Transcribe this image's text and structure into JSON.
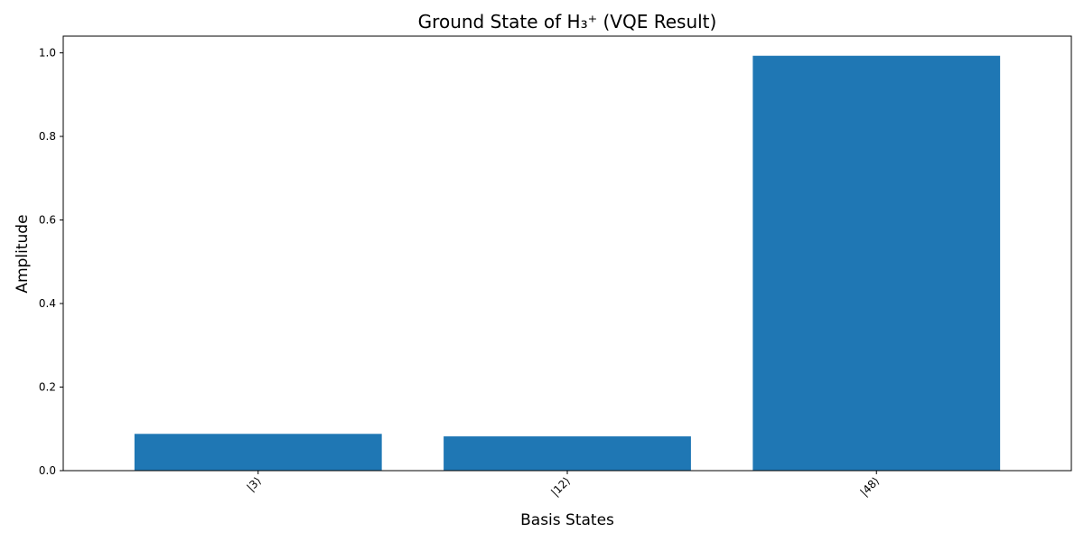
{
  "chart_data": {
    "type": "bar",
    "title": "Ground State of H₃⁺ (VQE Result)",
    "xlabel": "Basis States",
    "ylabel": "Amplitude",
    "categories": [
      "|3⟩",
      "|12⟩",
      "|48⟩"
    ],
    "values": [
      0.088,
      0.082,
      0.993
    ],
    "ylim": [
      0,
      1.04
    ],
    "yticks": [
      0.0,
      0.2,
      0.4,
      0.6,
      0.8,
      1.0
    ],
    "ytick_labels": [
      "0.0",
      "0.2",
      "0.4",
      "0.6",
      "0.8",
      "1.0"
    ],
    "bar_color": "#1f77b4",
    "grid": false,
    "xtick_rotation": "45"
  }
}
